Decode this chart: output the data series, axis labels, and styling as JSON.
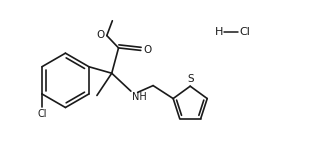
{
  "bg_color": "#ffffff",
  "line_color": "#1a1a1a",
  "line_width": 1.2,
  "font_size": 7.0,
  "figsize": [
    3.13,
    1.65
  ],
  "dpi": 100,
  "xlim": [
    0,
    10
  ],
  "ylim": [
    0,
    5.3
  ]
}
